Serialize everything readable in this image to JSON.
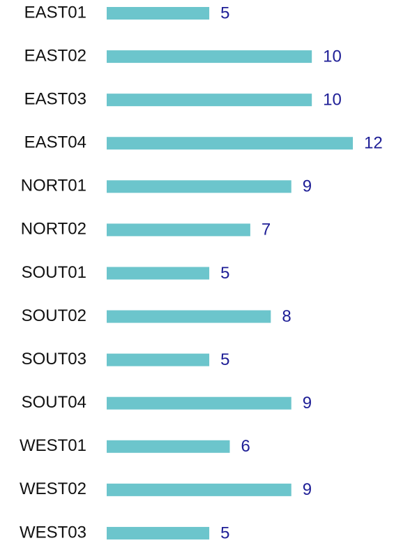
{
  "chart_data": {
    "type": "bar",
    "orientation": "horizontal",
    "categories": [
      "EAST01",
      "EAST02",
      "EAST03",
      "EAST04",
      "NORT01",
      "NORT02",
      "SOUT01",
      "SOUT02",
      "SOUT03",
      "SOUT04",
      "WEST01",
      "WEST02",
      "WEST03"
    ],
    "values": [
      5,
      10,
      10,
      12,
      9,
      7,
      5,
      8,
      5,
      9,
      6,
      9,
      5
    ],
    "color": "#6cc5cc"
  }
}
